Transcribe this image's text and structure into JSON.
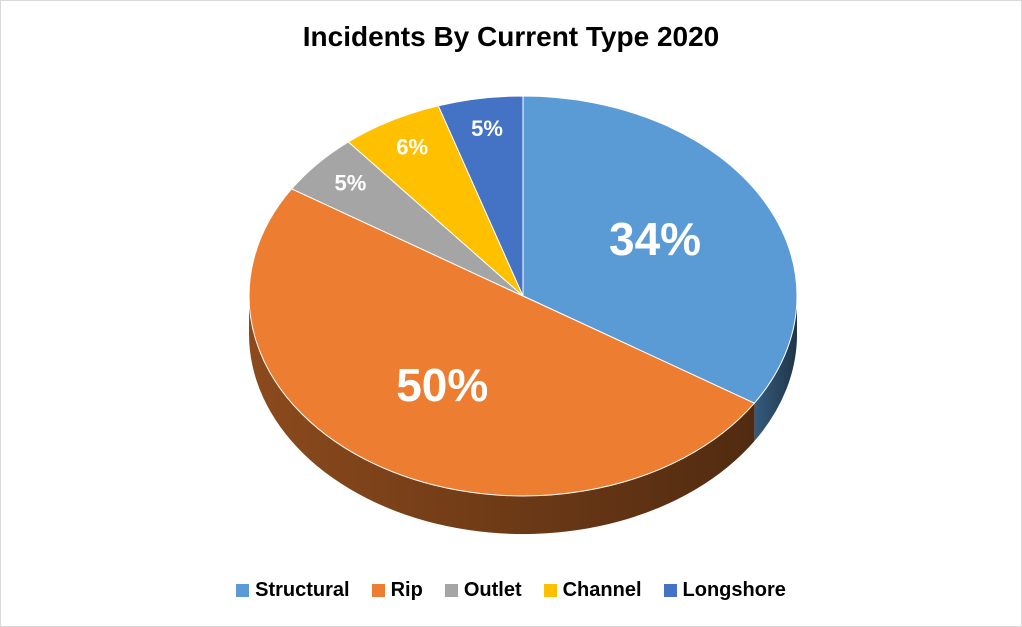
{
  "chart_data": {
    "type": "pie",
    "title": "Incidents By Current Type 2020",
    "categories": [
      "Structural",
      "Rip",
      "Outlet",
      "Channel",
      "Longshore"
    ],
    "values": [
      34,
      50,
      5,
      6,
      5
    ],
    "labels": [
      "34%",
      "50%",
      "5%",
      "6%",
      "5%"
    ],
    "colors": [
      "#5b9bd5",
      "#ed7d31",
      "#a5a5a5",
      "#ffc000",
      "#4472c4"
    ],
    "legend_position": "bottom",
    "style": "3d-tilted"
  }
}
